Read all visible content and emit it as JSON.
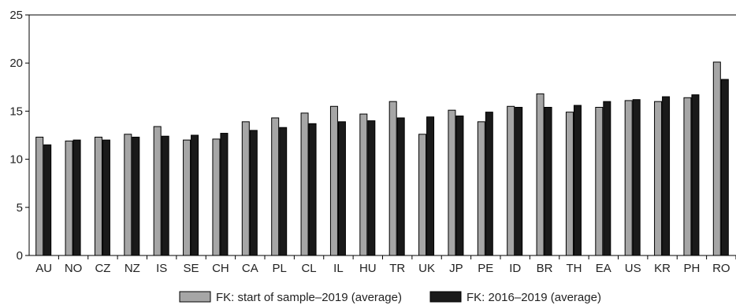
{
  "chart_data": {
    "type": "bar",
    "categories": [
      "AU",
      "NO",
      "CZ",
      "NZ",
      "IS",
      "SE",
      "CH",
      "CA",
      "PL",
      "CL",
      "IL",
      "HU",
      "TR",
      "UK",
      "JP",
      "PE",
      "ID",
      "BR",
      "TH",
      "EA",
      "US",
      "KR",
      "PH",
      "RO"
    ],
    "series": [
      {
        "name": "FK: start of sample–2019 (average)",
        "color": "#a6a6a6",
        "values": [
          12.3,
          11.9,
          12.3,
          12.6,
          13.4,
          12.0,
          12.1,
          13.9,
          14.3,
          14.8,
          15.5,
          14.7,
          16.0,
          12.6,
          15.1,
          13.9,
          15.5,
          16.8,
          14.9,
          15.4,
          16.1,
          16.0,
          16.4,
          20.1
        ]
      },
      {
        "name": "FK: 2016–2019 (average)",
        "color": "#1a1a1a",
        "values": [
          11.5,
          12.0,
          12.0,
          12.3,
          12.4,
          12.5,
          12.7,
          13.0,
          13.3,
          13.7,
          13.9,
          14.0,
          14.3,
          14.4,
          14.5,
          14.9,
          15.4,
          15.4,
          15.6,
          16.0,
          16.2,
          16.5,
          16.7,
          18.3
        ]
      }
    ],
    "y_ticks": [
      "0",
      "5",
      "10",
      "15",
      "20",
      "25"
    ],
    "ylim": [
      0,
      25
    ],
    "grid": false,
    "legend_position": "bottom-center"
  }
}
